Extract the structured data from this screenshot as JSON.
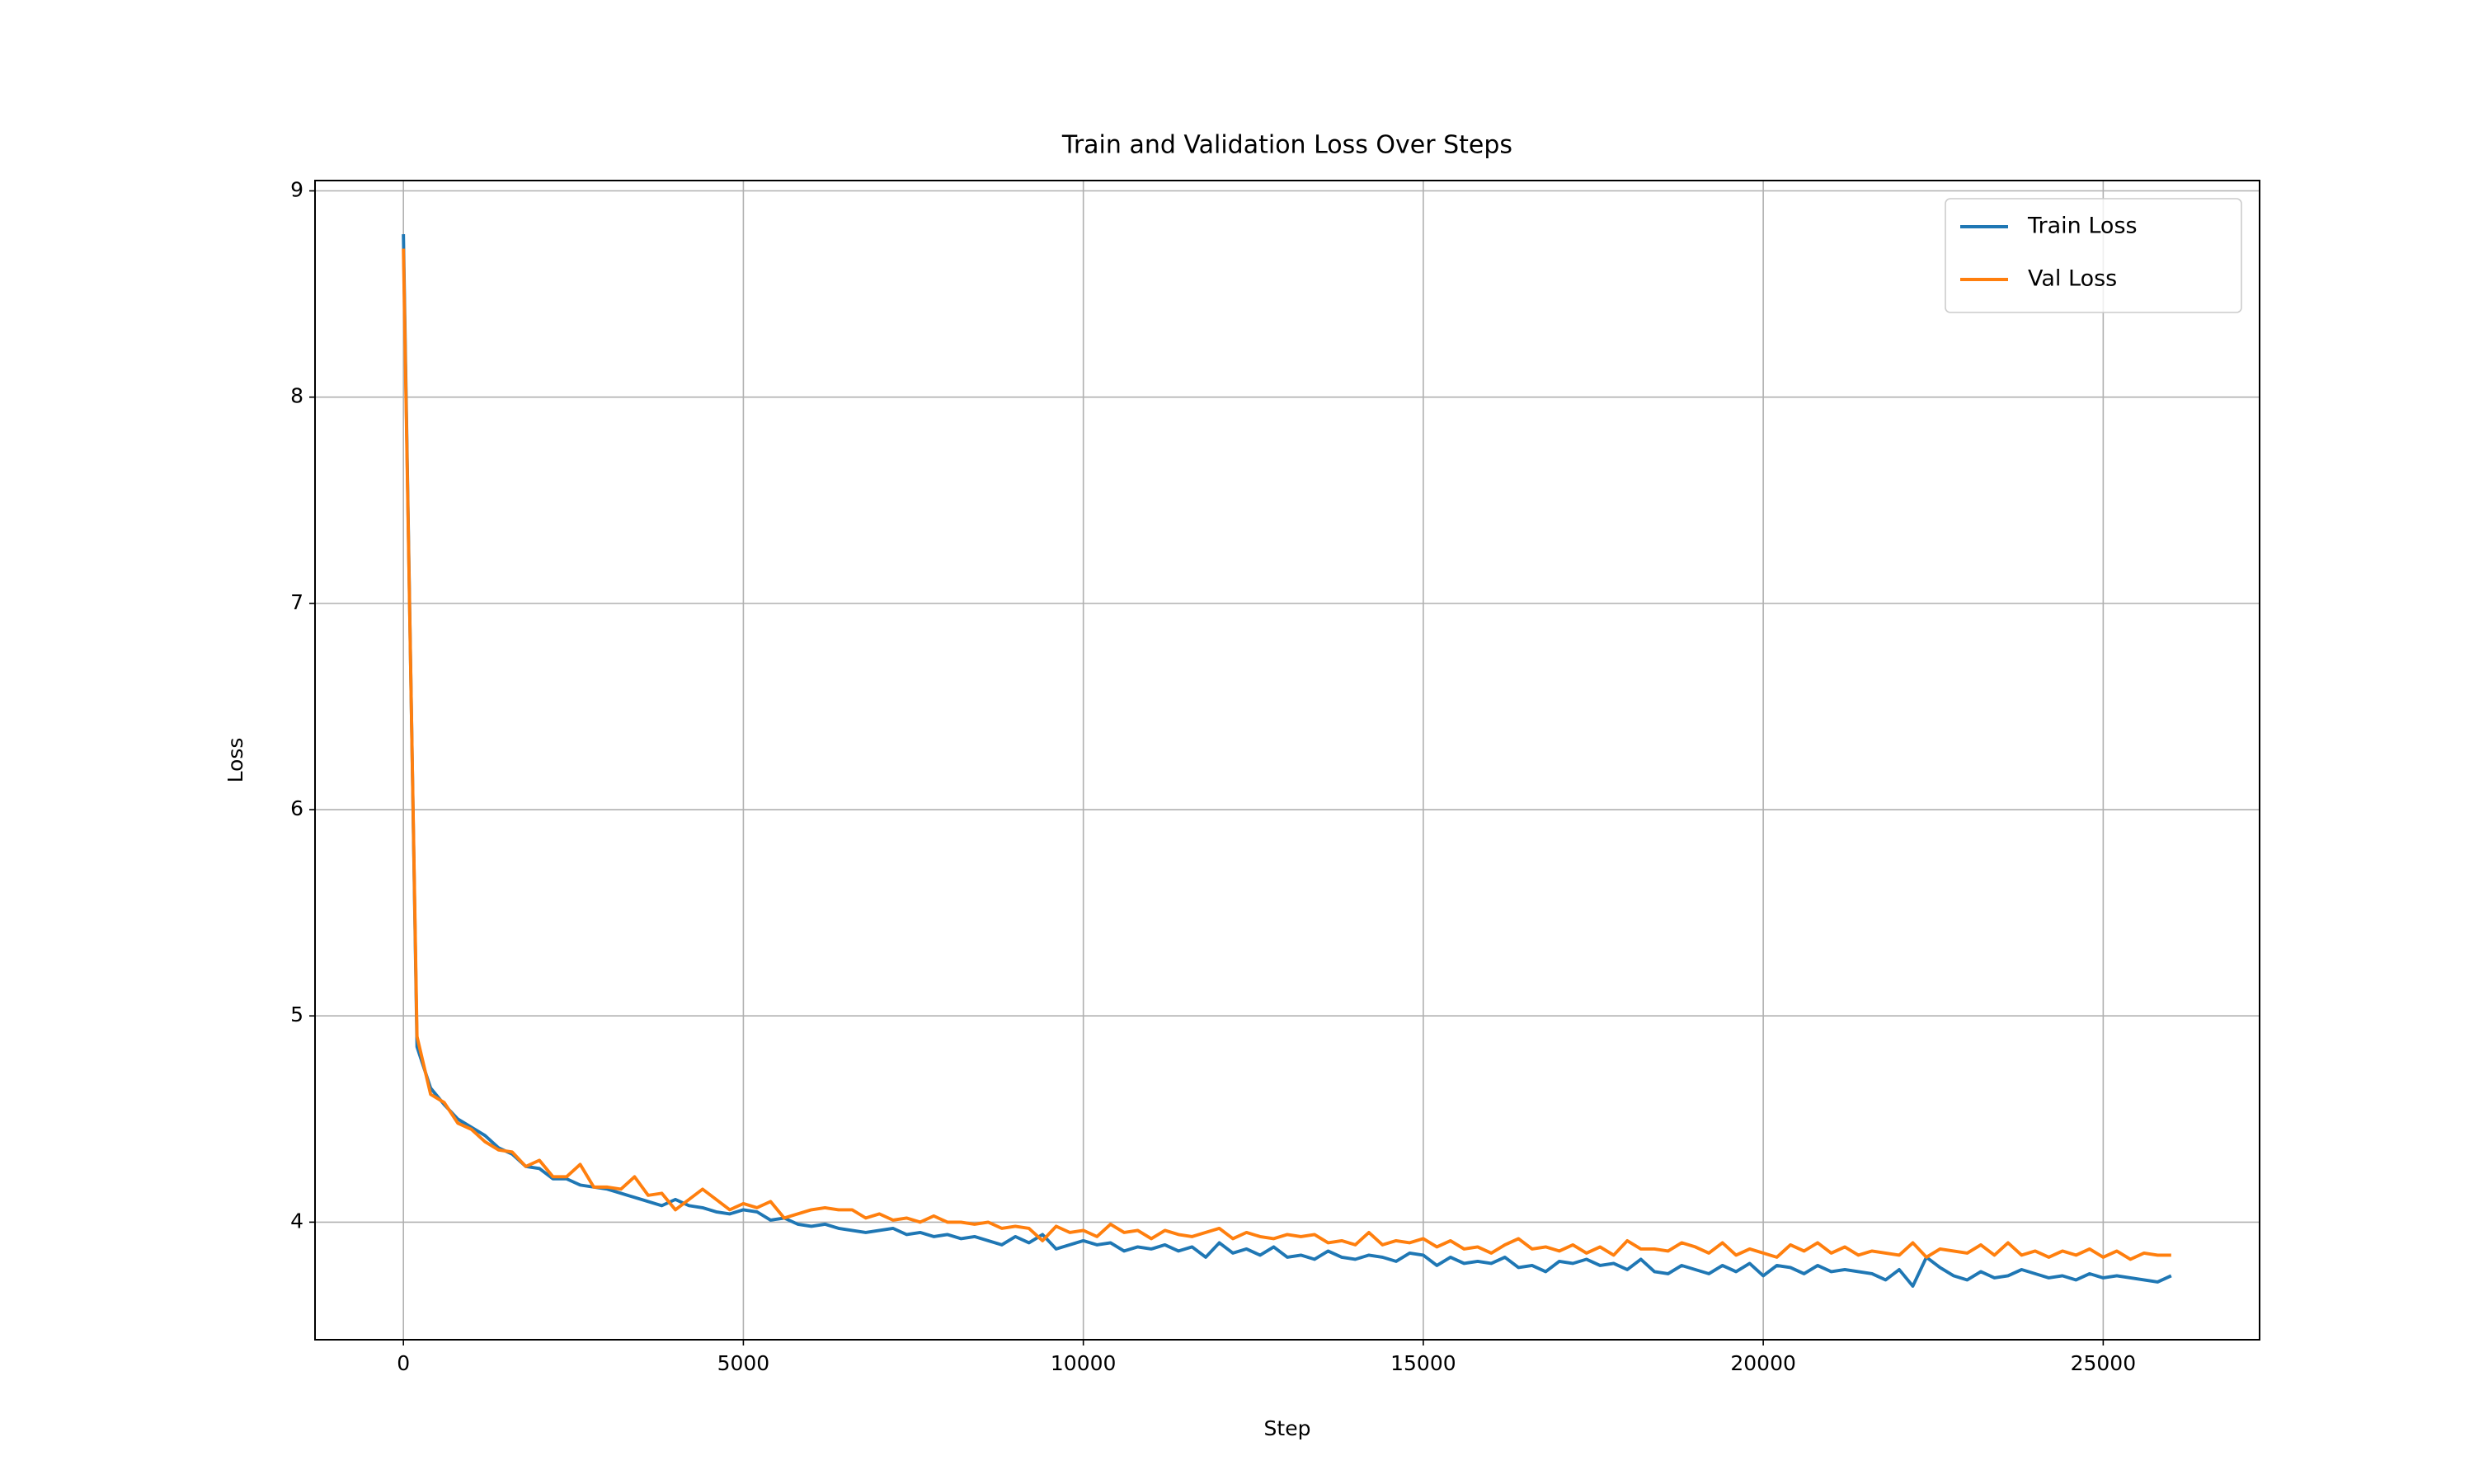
{
  "chart_data": {
    "type": "line",
    "title": "Train and Validation Loss Over Steps",
    "x_label": "Step",
    "y_label": "Loss",
    "x": [
      0,
      200,
      400,
      600,
      800,
      1000,
      1200,
      1400,
      1600,
      1800,
      2000,
      2200,
      2400,
      2600,
      2800,
      3000,
      3200,
      3400,
      3600,
      3800,
      4000,
      4200,
      4400,
      4600,
      4800,
      5000,
      5200,
      5400,
      5600,
      5800,
      6000,
      6200,
      6400,
      6600,
      6800,
      7000,
      7200,
      7400,
      7600,
      7800,
      8000,
      8200,
      8400,
      8600,
      8800,
      9000,
      9200,
      9400,
      9600,
      9800,
      10000,
      10200,
      10400,
      10600,
      10800,
      11000,
      11200,
      11400,
      11600,
      11800,
      12000,
      12200,
      12400,
      12600,
      12800,
      13000,
      13200,
      13400,
      13600,
      13800,
      14000,
      14200,
      14400,
      14600,
      14800,
      15000,
      15200,
      15400,
      15600,
      15800,
      16000,
      16200,
      16400,
      16600,
      16800,
      17000,
      17200,
      17400,
      17600,
      17800,
      18000,
      18200,
      18400,
      18600,
      18800,
      19000,
      19200,
      19400,
      19600,
      19800,
      20000,
      20200,
      20400,
      20600,
      20800,
      21000,
      21200,
      21400,
      21600,
      21800,
      22000,
      22200,
      22400,
      22600,
      22800,
      23000,
      23200,
      23400,
      23600,
      23800,
      24000,
      24200,
      24400,
      24600,
      24800,
      25000,
      25200,
      25400,
      25600,
      25800,
      26000
    ],
    "series": [
      {
        "name": "Train Loss",
        "color": "#1f77b4",
        "values": [
          8.79,
          4.85,
          4.65,
          4.57,
          4.5,
          4.46,
          4.42,
          4.36,
          4.33,
          4.27,
          4.26,
          4.21,
          4.21,
          4.18,
          4.17,
          4.16,
          4.14,
          4.12,
          4.1,
          4.08,
          4.11,
          4.08,
          4.07,
          4.05,
          4.04,
          4.06,
          4.05,
          4.01,
          4.02,
          3.99,
          3.98,
          3.99,
          3.97,
          3.96,
          3.95,
          3.96,
          3.97,
          3.94,
          3.95,
          3.93,
          3.94,
          3.92,
          3.93,
          3.91,
          3.89,
          3.93,
          3.9,
          3.94,
          3.87,
          3.89,
          3.91,
          3.89,
          3.9,
          3.86,
          3.88,
          3.87,
          3.89,
          3.86,
          3.88,
          3.83,
          3.9,
          3.85,
          3.87,
          3.84,
          3.88,
          3.83,
          3.84,
          3.82,
          3.86,
          3.83,
          3.82,
          3.84,
          3.83,
          3.81,
          3.85,
          3.84,
          3.79,
          3.83,
          3.8,
          3.81,
          3.8,
          3.83,
          3.78,
          3.79,
          3.76,
          3.81,
          3.8,
          3.82,
          3.79,
          3.8,
          3.77,
          3.82,
          3.76,
          3.75,
          3.79,
          3.77,
          3.75,
          3.79,
          3.76,
          3.8,
          3.74,
          3.79,
          3.78,
          3.75,
          3.79,
          3.76,
          3.77,
          3.76,
          3.75,
          3.72,
          3.77,
          3.69,
          3.83,
          3.78,
          3.74,
          3.72,
          3.76,
          3.73,
          3.74,
          3.77,
          3.75,
          3.73,
          3.74,
          3.72,
          3.75,
          3.73,
          3.74,
          3.73,
          3.72,
          3.71,
          3.74
        ]
      },
      {
        "name": "Val Loss",
        "color": "#ff7f0e",
        "values": [
          8.72,
          4.9,
          4.62,
          4.58,
          4.48,
          4.45,
          4.39,
          4.35,
          4.34,
          4.27,
          4.3,
          4.22,
          4.22,
          4.28,
          4.17,
          4.17,
          4.16,
          4.22,
          4.13,
          4.14,
          4.06,
          4.11,
          4.16,
          4.11,
          4.06,
          4.09,
          4.07,
          4.1,
          4.02,
          4.04,
          4.06,
          4.07,
          4.06,
          4.06,
          4.02,
          4.04,
          4.01,
          4.02,
          4.0,
          4.03,
          4.0,
          4.0,
          3.99,
          4.0,
          3.97,
          3.98,
          3.97,
          3.91,
          3.98,
          3.95,
          3.96,
          3.93,
          3.99,
          3.95,
          3.96,
          3.92,
          3.96,
          3.94,
          3.93,
          3.95,
          3.97,
          3.92,
          3.95,
          3.93,
          3.92,
          3.94,
          3.93,
          3.94,
          3.9,
          3.91,
          3.89,
          3.95,
          3.89,
          3.91,
          3.9,
          3.92,
          3.88,
          3.91,
          3.87,
          3.88,
          3.85,
          3.89,
          3.92,
          3.87,
          3.88,
          3.86,
          3.89,
          3.85,
          3.88,
          3.84,
          3.91,
          3.87,
          3.87,
          3.86,
          3.9,
          3.88,
          3.85,
          3.9,
          3.84,
          3.87,
          3.85,
          3.83,
          3.89,
          3.86,
          3.9,
          3.85,
          3.88,
          3.84,
          3.86,
          3.85,
          3.84,
          3.9,
          3.83,
          3.87,
          3.86,
          3.85,
          3.89,
          3.84,
          3.9,
          3.84,
          3.86,
          3.83,
          3.86,
          3.84,
          3.87,
          3.83,
          3.86,
          3.82,
          3.85,
          3.84,
          3.84
        ]
      }
    ],
    "xlim": [
      -1300,
      27300
    ],
    "ylim": [
      3.43,
      9.05
    ],
    "xticks": [
      0,
      5000,
      10000,
      15000,
      20000,
      25000
    ],
    "yticks": [
      4,
      5,
      6,
      7,
      8,
      9
    ],
    "grid": true,
    "legend": "upper right"
  }
}
